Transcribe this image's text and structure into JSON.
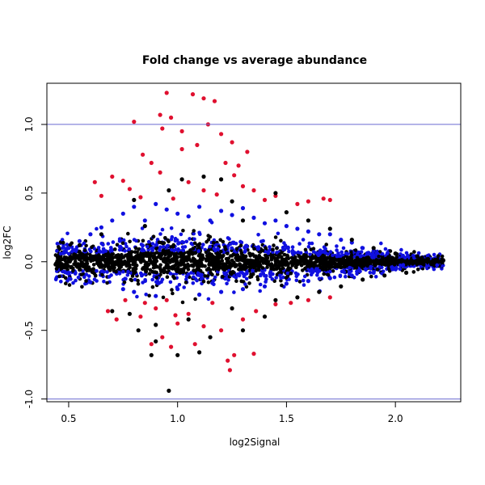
{
  "chart_data": {
    "type": "scatter",
    "title": "Fold change vs average abundance",
    "xlabel": "log2Signal",
    "ylabel": "log2FC",
    "xlim": [
      0.4,
      2.3
    ],
    "ylim": [
      -1.02,
      1.3
    ],
    "x_ticks": [
      0.5,
      1.0,
      1.5,
      2.0
    ],
    "y_ticks": [
      -1.0,
      -0.5,
      0.0,
      0.5,
      1.0
    ],
    "x_tick_labels": [
      "0.5",
      "1.0",
      "1.5",
      "2.0"
    ],
    "y_tick_labels": [
      "-1.0",
      "-0.5",
      "0.0",
      "0.5",
      "1.0"
    ],
    "reference_lines": [
      1.0,
      -1.0
    ],
    "reference_line_color": "#6a6ad0",
    "grid": false,
    "legend": "none",
    "series": [
      {
        "color": "#e0102f",
        "points": [
          [
            1.07,
            1.22
          ],
          [
            0.95,
            1.23
          ],
          [
            1.12,
            1.19
          ],
          [
            1.17,
            1.17
          ],
          [
            0.92,
            1.07
          ],
          [
            0.97,
            1.05
          ],
          [
            0.8,
            1.02
          ],
          [
            0.93,
            0.97
          ],
          [
            1.02,
            0.95
          ],
          [
            1.14,
            1.0
          ],
          [
            1.2,
            0.93
          ],
          [
            1.32,
            0.8
          ],
          [
            1.25,
            0.87
          ],
          [
            1.09,
            0.85
          ],
          [
            1.28,
            0.7
          ],
          [
            0.84,
            0.78
          ],
          [
            1.02,
            0.82
          ],
          [
            1.22,
            0.72
          ],
          [
            0.88,
            0.72
          ],
          [
            0.92,
            0.65
          ],
          [
            0.7,
            0.62
          ],
          [
            0.75,
            0.59
          ],
          [
            1.26,
            0.63
          ],
          [
            1.3,
            0.55
          ],
          [
            0.78,
            0.53
          ],
          [
            1.05,
            0.58
          ],
          [
            0.62,
            0.58
          ],
          [
            1.18,
            0.49
          ],
          [
            1.35,
            0.52
          ],
          [
            1.4,
            0.45
          ],
          [
            0.83,
            0.47
          ],
          [
            0.65,
            0.48
          ],
          [
            1.55,
            0.42
          ],
          [
            1.6,
            0.44
          ],
          [
            1.67,
            0.46
          ],
          [
            1.7,
            0.45
          ],
          [
            0.98,
            0.46
          ],
          [
            1.12,
            0.52
          ],
          [
            1.45,
            0.48
          ],
          [
            0.76,
            -0.28
          ],
          [
            0.85,
            -0.3
          ],
          [
            0.9,
            -0.34
          ],
          [
            0.95,
            -0.28
          ],
          [
            0.83,
            -0.4
          ],
          [
            0.72,
            -0.42
          ],
          [
            1.0,
            -0.45
          ],
          [
            1.05,
            -0.38
          ],
          [
            1.12,
            -0.47
          ],
          [
            0.93,
            -0.55
          ],
          [
            1.2,
            -0.5
          ],
          [
            1.3,
            -0.42
          ],
          [
            1.36,
            -0.36
          ],
          [
            0.88,
            -0.6
          ],
          [
            0.97,
            -0.62
          ],
          [
            1.08,
            -0.6
          ],
          [
            1.26,
            -0.68
          ],
          [
            1.35,
            -0.67
          ],
          [
            1.23,
            -0.72
          ],
          [
            1.24,
            -0.79
          ],
          [
            1.45,
            -0.31
          ],
          [
            1.52,
            -0.3
          ],
          [
            1.6,
            -0.28
          ],
          [
            1.7,
            -0.26
          ],
          [
            0.68,
            -0.36
          ],
          [
            1.16,
            -0.3
          ],
          [
            0.99,
            -0.39
          ]
        ]
      },
      {
        "color": "#1010e0",
        "points": [
          [
            0.75,
            0.35
          ],
          [
            0.8,
            0.4
          ],
          [
            0.85,
            0.3
          ],
          [
            0.9,
            0.42
          ],
          [
            0.95,
            0.38
          ],
          [
            1.0,
            0.35
          ],
          [
            1.05,
            0.33
          ],
          [
            1.1,
            0.4
          ],
          [
            1.15,
            0.3
          ],
          [
            1.2,
            0.37
          ],
          [
            1.25,
            0.34
          ],
          [
            1.3,
            0.39
          ],
          [
            1.35,
            0.32
          ],
          [
            1.4,
            0.28
          ],
          [
            1.45,
            0.3
          ],
          [
            1.5,
            0.26
          ],
          [
            1.55,
            0.24
          ],
          [
            1.6,
            0.22
          ],
          [
            1.65,
            0.2
          ],
          [
            1.7,
            0.2
          ],
          [
            1.75,
            0.16
          ],
          [
            1.8,
            0.14
          ],
          [
            1.85,
            0.1
          ],
          [
            1.9,
            0.08
          ],
          [
            0.7,
            0.3
          ],
          [
            0.65,
            0.25
          ],
          [
            0.6,
            0.2
          ],
          [
            0.55,
            0.15
          ],
          [
            0.5,
            0.1
          ],
          [
            0.75,
            -0.2
          ],
          [
            0.8,
            -0.22
          ],
          [
            0.9,
            -0.25
          ],
          [
            1.0,
            -0.2
          ],
          [
            1.1,
            -0.24
          ],
          [
            1.2,
            -0.22
          ],
          [
            1.3,
            -0.2
          ],
          [
            1.4,
            -0.18
          ],
          [
            1.5,
            -0.16
          ],
          [
            1.6,
            -0.14
          ],
          [
            1.7,
            -0.12
          ],
          [
            1.8,
            -0.1
          ],
          [
            1.9,
            -0.08
          ],
          [
            2.0,
            -0.05
          ],
          [
            0.6,
            -0.15
          ],
          [
            0.5,
            -0.08
          ]
        ]
      },
      {
        "color": "#000000",
        "points": [
          [
            0.96,
            -0.94
          ],
          [
            0.88,
            -0.68
          ],
          [
            1.0,
            -0.68
          ],
          [
            1.1,
            -0.66
          ],
          [
            0.82,
            -0.5
          ],
          [
            0.9,
            -0.46
          ],
          [
            1.15,
            -0.55
          ],
          [
            1.3,
            -0.5
          ],
          [
            1.4,
            -0.4
          ],
          [
            0.7,
            -0.36
          ],
          [
            0.78,
            -0.38
          ],
          [
            1.05,
            -0.42
          ],
          [
            1.25,
            -0.34
          ],
          [
            1.45,
            -0.28
          ],
          [
            1.55,
            -0.26
          ],
          [
            1.65,
            -0.22
          ],
          [
            1.75,
            -0.18
          ],
          [
            1.85,
            -0.13
          ],
          [
            1.95,
            -0.1
          ],
          [
            2.05,
            -0.08
          ],
          [
            2.15,
            0.02
          ],
          [
            2.2,
            0.0
          ],
          [
            2.22,
            0.01
          ],
          [
            2.1,
            0.04
          ],
          [
            2.0,
            0.06
          ],
          [
            1.9,
            0.1
          ],
          [
            1.8,
            0.16
          ],
          [
            1.7,
            0.24
          ],
          [
            1.6,
            0.3
          ],
          [
            1.5,
            0.36
          ],
          [
            1.45,
            0.5
          ],
          [
            1.2,
            0.6
          ],
          [
            1.25,
            0.44
          ],
          [
            1.3,
            0.3
          ],
          [
            0.8,
            0.45
          ],
          [
            0.85,
            0.26
          ],
          [
            0.65,
            0.2
          ],
          [
            0.55,
            0.12
          ],
          [
            0.45,
            0.03
          ],
          [
            0.44,
            -0.02
          ],
          [
            0.46,
            0.01
          ],
          [
            1.02,
            0.6
          ],
          [
            0.96,
            0.52
          ],
          [
            1.12,
            0.62
          ],
          [
            0.9,
            -0.58
          ]
        ]
      }
    ],
    "band": {
      "description_note": "",
      "color_outer": "#1010e0",
      "color_inner": "#000000"
    }
  }
}
